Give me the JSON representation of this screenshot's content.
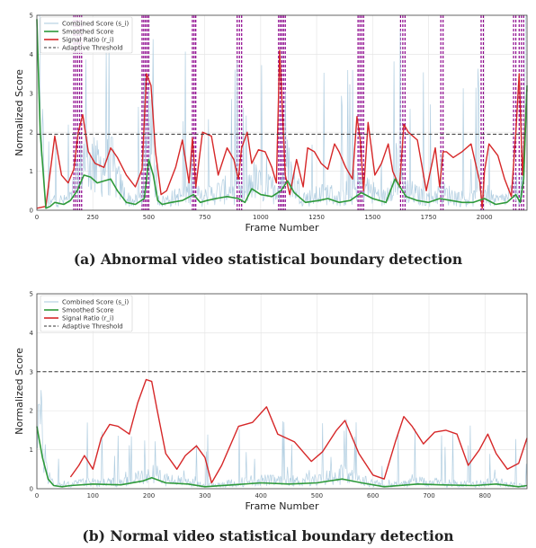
{
  "colors": {
    "combined": "#a9c9de",
    "smoothed": "#2e9a3a",
    "ratio": "#d62728",
    "threshold": "#333333",
    "boundary": "#8b008b",
    "grid": "#e6e6e6"
  },
  "legend_labels": [
    "Combined Score (s_i)",
    "Smoothed Score",
    "Signal Ratio (r_i)",
    "Adaptive Threshold"
  ],
  "chart_data": [
    {
      "type": "line",
      "caption": "(a) Abnormal video statistical boundary detection",
      "xlabel": "Frame Number",
      "ylabel": "Normalized Score",
      "xlim": [
        0,
        2190
      ],
      "ylim": [
        0,
        5
      ],
      "xticks": [
        0,
        250,
        500,
        750,
        1000,
        1250,
        1500,
        1750,
        2000
      ],
      "yticks": [
        0,
        1,
        2,
        3,
        4,
        5
      ],
      "grid": true,
      "legend_position": "top-left",
      "threshold": 1.95,
      "boundaries": [
        [
          165,
          200
        ],
        [
          470,
          500
        ],
        [
          695,
          710
        ],
        [
          895,
          915
        ],
        [
          1080,
          1110
        ],
        [
          1435,
          1460
        ],
        [
          1625,
          1645
        ],
        [
          1805,
          1815
        ],
        [
          1985,
          1995
        ],
        [
          2130,
          2140
        ],
        [
          2155,
          2175
        ]
      ],
      "series": [
        {
          "name": "Signal Ratio (r_i)",
          "x": [
            0,
            40,
            80,
            110,
            140,
            165,
            185,
            205,
            230,
            260,
            300,
            330,
            360,
            400,
            440,
            470,
            490,
            510,
            530,
            555,
            580,
            620,
            650,
            680,
            695,
            710,
            740,
            780,
            810,
            850,
            880,
            900,
            915,
            940,
            960,
            990,
            1020,
            1050,
            1070,
            1085,
            1100,
            1110,
            1130,
            1160,
            1190,
            1210,
            1240,
            1270,
            1300,
            1330,
            1350,
            1380,
            1410,
            1430,
            1445,
            1460,
            1480,
            1510,
            1540,
            1570,
            1590,
            1620,
            1640,
            1660,
            1700,
            1740,
            1780,
            1800,
            1815,
            1830,
            1860,
            1900,
            1940,
            1980,
            1990,
            2000,
            2020,
            2060,
            2090,
            2120,
            2140,
            2155,
            2170,
            2190
          ],
          "values": [
            0.05,
            0.1,
            1.9,
            0.9,
            0.7,
            1.05,
            2.0,
            2.45,
            1.5,
            1.2,
            1.1,
            1.6,
            1.35,
            0.9,
            0.6,
            1.05,
            3.5,
            3.2,
            1.5,
            0.4,
            0.5,
            1.1,
            1.8,
            0.7,
            1.85,
            0.6,
            2.0,
            1.9,
            0.9,
            1.6,
            1.3,
            0.8,
            1.6,
            2.0,
            1.2,
            1.55,
            1.5,
            1.1,
            0.7,
            4.1,
            2.2,
            0.9,
            0.4,
            1.3,
            0.6,
            1.6,
            1.5,
            1.2,
            1.05,
            1.7,
            1.5,
            1.1,
            0.8,
            2.4,
            1.8,
            0.5,
            2.25,
            0.9,
            1.2,
            1.7,
            1.0,
            0.6,
            2.2,
            2.0,
            1.8,
            0.5,
            1.6,
            0.6,
            1.5,
            1.5,
            1.35,
            1.5,
            1.7,
            0.7,
            0.05,
            1.0,
            1.7,
            1.4,
            0.8,
            0.35,
            2.0,
            3.5,
            0.9,
            3.1
          ]
        },
        {
          "name": "Smoothed Score",
          "x": [
            0,
            15,
            40,
            60,
            80,
            120,
            150,
            180,
            210,
            240,
            270,
            300,
            330,
            360,
            400,
            440,
            480,
            500,
            520,
            540,
            560,
            600,
            650,
            700,
            730,
            760,
            800,
            850,
            900,
            930,
            960,
            1000,
            1050,
            1090,
            1120,
            1150,
            1200,
            1260,
            1300,
            1350,
            1400,
            1450,
            1500,
            1560,
            1600,
            1650,
            1700,
            1750,
            1800,
            1850,
            1900,
            1950,
            2000,
            2050,
            2100,
            2140,
            2160,
            2175,
            2190
          ],
          "values": [
            4.9,
            2.0,
            0.05,
            0.1,
            0.2,
            0.15,
            0.25,
            0.5,
            0.9,
            0.85,
            0.7,
            0.75,
            0.8,
            0.5,
            0.2,
            0.15,
            0.3,
            1.3,
            0.9,
            0.25,
            0.15,
            0.2,
            0.25,
            0.4,
            0.2,
            0.25,
            0.3,
            0.35,
            0.3,
            0.2,
            0.55,
            0.4,
            0.35,
            0.5,
            0.75,
            0.45,
            0.2,
            0.25,
            0.3,
            0.2,
            0.25,
            0.45,
            0.3,
            0.2,
            0.8,
            0.35,
            0.25,
            0.2,
            0.3,
            0.25,
            0.2,
            0.2,
            0.3,
            0.15,
            0.2,
            0.4,
            0.2,
            0.8,
            3.2
          ]
        }
      ]
    },
    {
      "type": "line",
      "caption": "(b) Normal video statistical boundary detection",
      "xlabel": "Frame Number",
      "ylabel": "Normalized Score",
      "xlim": [
        0,
        875
      ],
      "ylim": [
        0,
        5
      ],
      "xticks": [
        0,
        100,
        200,
        300,
        400,
        500,
        600,
        700,
        800
      ],
      "yticks": [
        0,
        1,
        2,
        3,
        4,
        5
      ],
      "grid": true,
      "legend_position": "top-left",
      "threshold": 3.0,
      "boundaries": [],
      "series": [
        {
          "name": "Signal Ratio (r_i)",
          "x": [
            60,
            75,
            85,
            100,
            115,
            130,
            145,
            165,
            180,
            195,
            205,
            215,
            230,
            250,
            265,
            285,
            300,
            312,
            330,
            360,
            385,
            410,
            430,
            460,
            490,
            510,
            535,
            550,
            575,
            600,
            620,
            640,
            655,
            670,
            690,
            710,
            730,
            750,
            770,
            790,
            805,
            820,
            840,
            860,
            875
          ],
          "values": [
            0.3,
            0.6,
            0.85,
            0.5,
            1.3,
            1.65,
            1.6,
            1.4,
            2.2,
            2.8,
            2.75,
            2.0,
            0.9,
            0.5,
            0.85,
            1.1,
            0.8,
            0.15,
            0.6,
            1.6,
            1.7,
            2.1,
            1.4,
            1.2,
            0.7,
            0.95,
            1.5,
            1.75,
            0.9,
            0.35,
            0.25,
            1.2,
            1.85,
            1.6,
            1.15,
            1.45,
            1.5,
            1.4,
            0.6,
            1.0,
            1.4,
            0.9,
            0.5,
            0.65,
            1.3
          ]
        },
        {
          "name": "Smoothed Score",
          "x": [
            0,
            10,
            20,
            30,
            45,
            60,
            100,
            150,
            190,
            205,
            230,
            270,
            300,
            350,
            400,
            450,
            500,
            545,
            580,
            620,
            680,
            720,
            780,
            820,
            860,
            875
          ],
          "values": [
            1.6,
            0.8,
            0.25,
            0.08,
            0.05,
            0.08,
            0.12,
            0.1,
            0.2,
            0.28,
            0.15,
            0.12,
            0.05,
            0.1,
            0.15,
            0.12,
            0.15,
            0.25,
            0.15,
            0.05,
            0.12,
            0.1,
            0.08,
            0.12,
            0.05,
            0.08
          ]
        }
      ]
    }
  ]
}
